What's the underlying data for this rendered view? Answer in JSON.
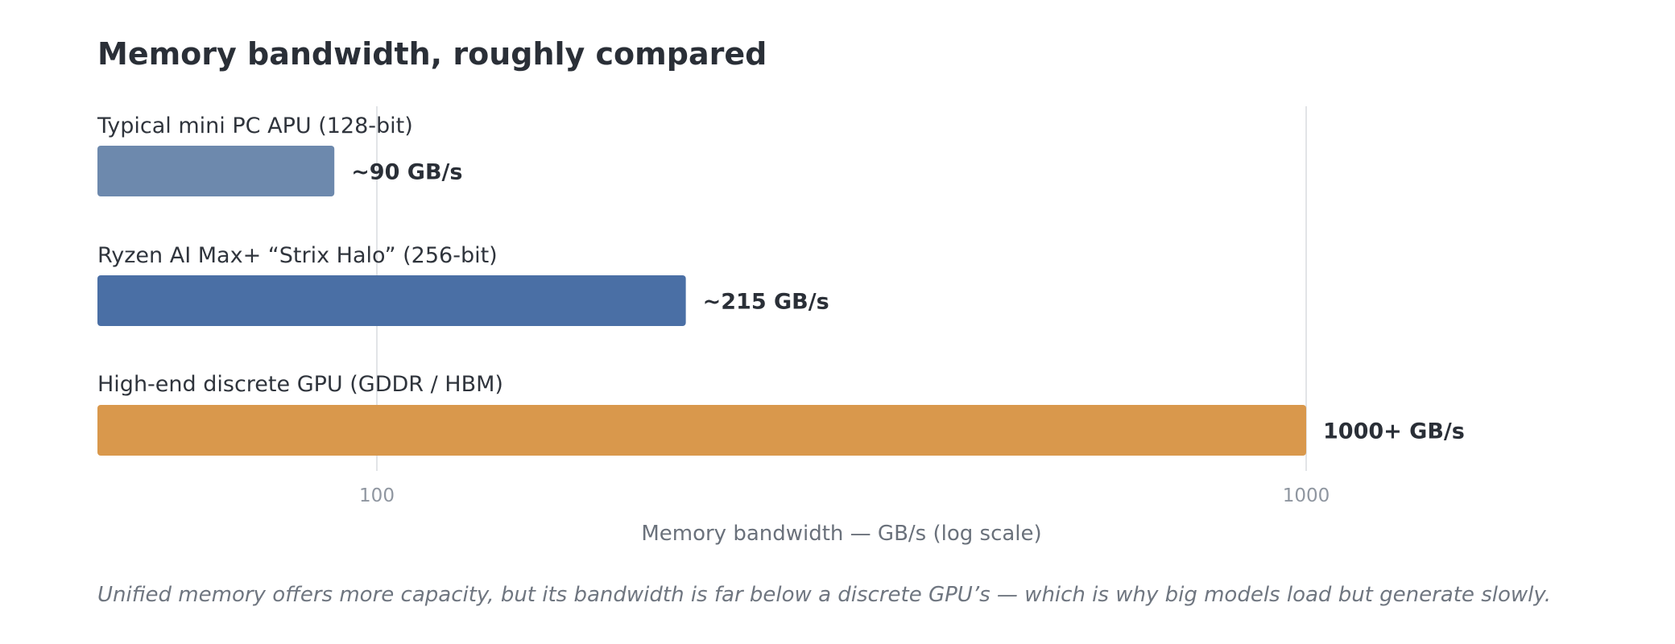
{
  "chart_data": {
    "type": "bar",
    "orientation": "horizontal",
    "title": "Memory bandwidth, roughly compared",
    "xlabel": "Memory bandwidth — GB/s (log scale)",
    "x_scale": "log",
    "xlim": [
      50,
      2000
    ],
    "x_ticks": [
      {
        "value": 100,
        "label": "100"
      },
      {
        "value": 1000,
        "label": "1000"
      }
    ],
    "grid": "vertical at ticks",
    "categories": [
      "Typical mini PC APU (128-bit)",
      "Ryzen AI Max+ “Strix Halo” (256-bit)",
      "High-end discrete GPU (GDDR / HBM)"
    ],
    "values": [
      90,
      215,
      1000
    ],
    "value_labels": [
      "~90 GB/s",
      "~215 GB/s",
      "1000+ GB/s"
    ],
    "colors": [
      "#6d89ad",
      "#4a6fa5",
      "#d9984c"
    ],
    "caption": "Unified memory offers more capacity, but its bandwidth is far below a discrete GPU’s — which is why big models load but generate slowly."
  }
}
